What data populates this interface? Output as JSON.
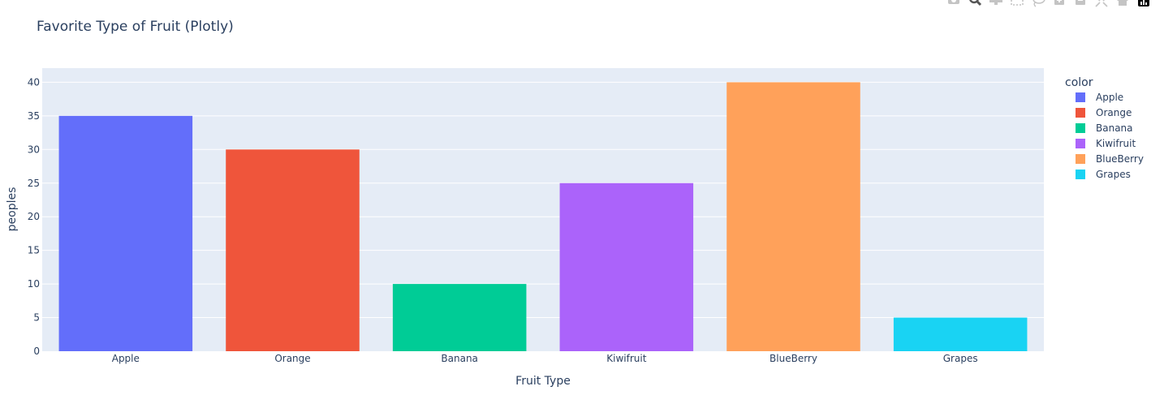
{
  "colors": {
    "plot_bg": "#E5ECF6",
    "grid": "#FFFFFF",
    "text": "#2A3F5F",
    "modebar_icon": "#C4C4C4",
    "modebar_logo": "#000000"
  },
  "modebar": [
    {
      "name": "camera-icon"
    },
    {
      "name": "zoom-icon"
    },
    {
      "name": "pan-icon"
    },
    {
      "name": "box-select-icon"
    },
    {
      "name": "lasso-select-icon"
    },
    {
      "name": "zoom-in-icon"
    },
    {
      "name": "zoom-out-icon"
    },
    {
      "name": "autoscale-icon"
    },
    {
      "name": "reset-axes-icon"
    },
    {
      "name": "plotly-logo-icon"
    }
  ],
  "chart_data": {
    "type": "bar",
    "title": "Favorite Type of Fruit (Plotly)",
    "xlabel": "Fruit Type",
    "ylabel": "peoples",
    "categories": [
      "Apple",
      "Orange",
      "Banana",
      "Kiwifruit",
      "BlueBerry",
      "Grapes"
    ],
    "values": [
      35,
      30,
      10,
      25,
      40,
      5
    ],
    "colors": [
      "#636EFA",
      "#EF553B",
      "#00CC96",
      "#AB63FA",
      "#FFA15A",
      "#19D3F3"
    ],
    "ylim": [
      0,
      42.1
    ],
    "yticks": [
      0,
      5,
      10,
      15,
      20,
      25,
      30,
      35,
      40
    ],
    "ytick_labels": [
      "0",
      "5",
      "10",
      "15",
      "20",
      "25",
      "30",
      "35",
      "40"
    ],
    "grid": true,
    "legend": {
      "title": "color",
      "position": "right",
      "entries": [
        "Apple",
        "Orange",
        "Banana",
        "Kiwifruit",
        "BlueBerry",
        "Grapes"
      ]
    }
  }
}
